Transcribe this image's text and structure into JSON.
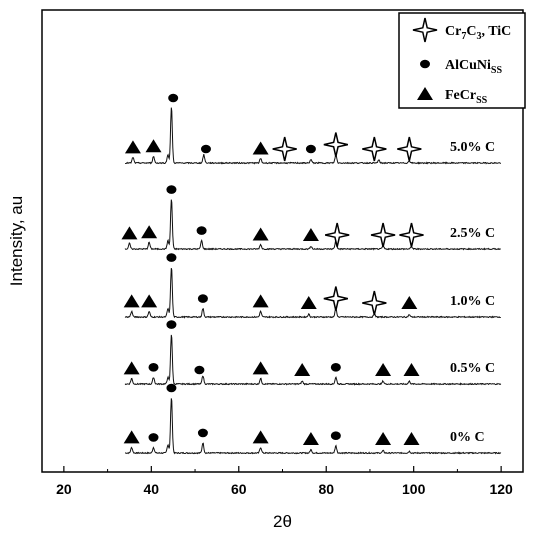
{
  "chart_data": {
    "type": "line",
    "title": "",
    "xlabel": "2θ",
    "ylabel": "Intensity, au",
    "xlim": [
      15,
      125
    ],
    "xticks": [
      20,
      40,
      60,
      80,
      100,
      120
    ],
    "xtick_labels": [
      "20",
      "40",
      "60",
      "80",
      "100",
      "120"
    ],
    "grid": false,
    "legend": {
      "position": "top-right",
      "entries": [
        {
          "marker": "four-point-star",
          "text": "Cr7C3, TiC",
          "rich": [
            [
              "Cr",
              ""
            ],
            [
              "7",
              "sub"
            ],
            [
              "C",
              ""
            ],
            [
              "3",
              "sub"
            ],
            [
              ", TiC",
              ""
            ]
          ]
        },
        {
          "marker": "circle",
          "text": "AlCuNiSS",
          "rich": [
            [
              "AlCuNi",
              ""
            ],
            [
              "SS",
              "sub"
            ]
          ]
        },
        {
          "marker": "triangle",
          "text": "FeCrSS",
          "rich": [
            [
              "FeCr",
              ""
            ],
            [
              "SS",
              "sub"
            ]
          ]
        }
      ]
    },
    "series": [
      {
        "name": "0% C",
        "peaks": [
          [
            35.5,
            0.1
          ],
          [
            40.5,
            0.1
          ],
          [
            43.8,
            0.15
          ],
          [
            44.6,
            1.0
          ],
          [
            51.8,
            0.18
          ],
          [
            65.0,
            0.1
          ],
          [
            76.5,
            0.06
          ],
          [
            82.2,
            0.13
          ],
          [
            93.0,
            0.04
          ],
          [
            99.0,
            0.03
          ]
        ],
        "markers": [
          [
            "triangle",
            35.5
          ],
          [
            "circle",
            40.5
          ],
          [
            "circle",
            44.6
          ],
          [
            "circle",
            51.8
          ],
          [
            "triangle",
            65.0
          ],
          [
            "triangle",
            76.5
          ],
          [
            "circle",
            82.2
          ],
          [
            "triangle",
            93.0
          ],
          [
            "triangle",
            99.5
          ]
        ]
      },
      {
        "name": "0.5% C",
        "peaks": [
          [
            35.5,
            0.1
          ],
          [
            40.5,
            0.12
          ],
          [
            43.8,
            0.12
          ],
          [
            44.6,
            0.9
          ],
          [
            51.8,
            0.15
          ],
          [
            65.0,
            0.1
          ],
          [
            74.5,
            0.05
          ],
          [
            82.2,
            0.12
          ],
          [
            93.0,
            0.05
          ],
          [
            99.0,
            0.05
          ]
        ],
        "markers": [
          [
            "triangle",
            35.5
          ],
          [
            "circle",
            40.5
          ],
          [
            "circle",
            44.6
          ],
          [
            "circle",
            51.0
          ],
          [
            "triangle",
            65.0
          ],
          [
            "triangle",
            74.5
          ],
          [
            "circle",
            82.2
          ],
          [
            "triangle",
            93.0
          ],
          [
            "triangle",
            99.5
          ]
        ]
      },
      {
        "name": "1.0% C",
        "peaks": [
          [
            35.5,
            0.1
          ],
          [
            39.5,
            0.1
          ],
          [
            43.8,
            0.15
          ],
          [
            44.6,
            0.9
          ],
          [
            51.8,
            0.15
          ],
          [
            65.0,
            0.1
          ],
          [
            76.0,
            0.05
          ],
          [
            82.2,
            0.15
          ],
          [
            91.0,
            0.05
          ],
          [
            99.0,
            0.04
          ]
        ],
        "markers": [
          [
            "triangle",
            35.5
          ],
          [
            "triangle",
            39.5
          ],
          [
            "circle",
            44.6
          ],
          [
            "circle",
            51.8
          ],
          [
            "triangle",
            65.0
          ],
          [
            "triangle",
            76.0
          ],
          [
            "star",
            82.2
          ],
          [
            "star",
            91.0
          ],
          [
            "triangle",
            99.0
          ]
        ]
      },
      {
        "name": "2.5% C",
        "peaks": [
          [
            35.0,
            0.1
          ],
          [
            39.5,
            0.12
          ],
          [
            43.8,
            0.15
          ],
          [
            44.6,
            0.9
          ],
          [
            51.5,
            0.15
          ],
          [
            65.0,
            0.08
          ],
          [
            76.5,
            0.05
          ],
          [
            82.2,
            0.15
          ],
          [
            93.0,
            0.05
          ],
          [
            99.5,
            0.04
          ]
        ],
        "markers": [
          [
            "triangle",
            35.0
          ],
          [
            "triangle",
            39.5
          ],
          [
            "circle",
            44.6
          ],
          [
            "circle",
            51.5
          ],
          [
            "triangle",
            65.0
          ],
          [
            "triangle",
            76.5
          ],
          [
            "star",
            82.5
          ],
          [
            "star",
            93.0
          ],
          [
            "star",
            99.5
          ]
        ]
      },
      {
        "name": "5.0% C",
        "peaks": [
          [
            35.8,
            0.1
          ],
          [
            40.5,
            0.12
          ],
          [
            43.8,
            0.15
          ],
          [
            44.6,
            1.0
          ],
          [
            52.0,
            0.15
          ],
          [
            65.0,
            0.08
          ],
          [
            76.5,
            0.06
          ],
          [
            82.2,
            0.15
          ],
          [
            92.0,
            0.05
          ],
          [
            99.0,
            0.04
          ]
        ],
        "markers": [
          [
            "triangle",
            35.8
          ],
          [
            "triangle",
            40.5
          ],
          [
            "circle",
            45.0
          ],
          [
            "circle",
            52.5
          ],
          [
            "triangle",
            65.0
          ],
          [
            "star",
            70.5
          ],
          [
            "circle",
            76.5
          ],
          [
            "star",
            82.2
          ],
          [
            "star",
            91.0
          ],
          [
            "star",
            99.0
          ]
        ]
      }
    ]
  }
}
